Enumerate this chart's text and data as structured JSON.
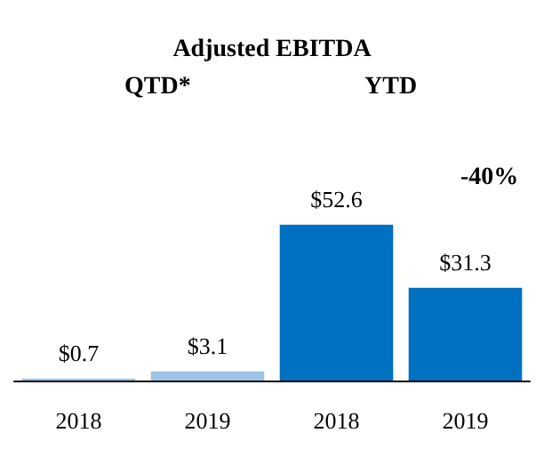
{
  "chart_data": {
    "type": "bar",
    "title": "Adjusted EBITDA",
    "categories": [
      "2018",
      "2019",
      "2018",
      "2019"
    ],
    "values": [
      0.7,
      3.1,
      52.6,
      31.3
    ],
    "colors": [
      "#9dc3e6",
      "#9dc3e6",
      "#0070c0",
      "#0070c0"
    ],
    "value_labels": [
      "$0.7",
      "$3.1",
      "$52.6",
      "$31.3"
    ],
    "annotations": [
      "QTD*",
      "YTD",
      "-40%"
    ]
  }
}
